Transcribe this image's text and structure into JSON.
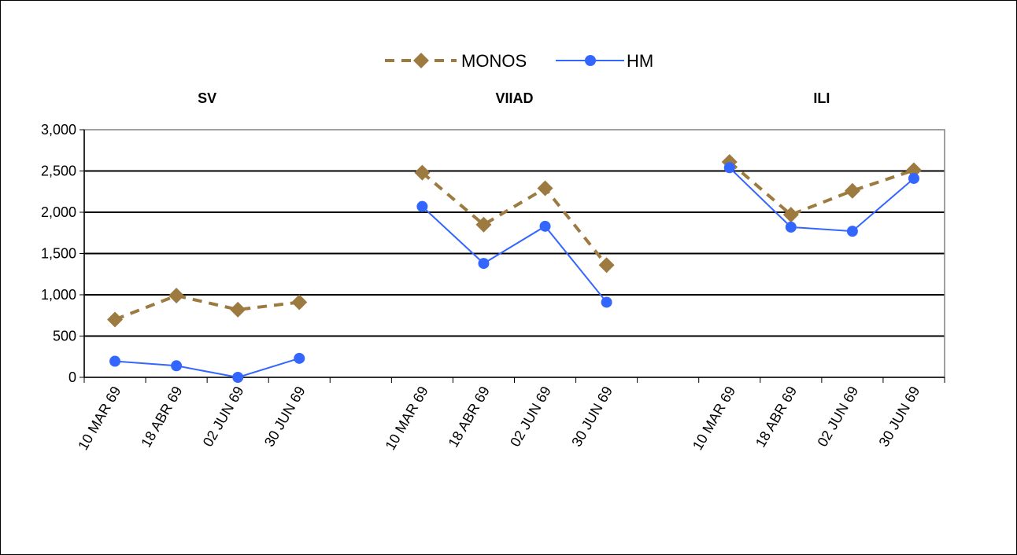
{
  "chart_data": {
    "type": "line",
    "groups": [
      "SV",
      "VIIAD",
      "ILI"
    ],
    "categories": [
      "10 MAR 69",
      "18 ABR 69",
      "02 JUN 69",
      "30 JUN 69"
    ],
    "series": [
      {
        "name": "MONOS",
        "color": "#9C7A40",
        "style": "dashed",
        "marker": "diamond",
        "values": [
          [
            700,
            990,
            820,
            910
          ],
          [
            2480,
            1850,
            2290,
            1360
          ],
          [
            2610,
            1970,
            2260,
            2510
          ]
        ]
      },
      {
        "name": "HM",
        "color": "#3366FF",
        "style": "solid",
        "marker": "circle",
        "values": [
          [
            195,
            140,
            0,
            230
          ],
          [
            2070,
            1380,
            1830,
            910
          ],
          [
            2540,
            1820,
            1770,
            2410
          ]
        ]
      }
    ],
    "yticks": [
      "0",
      "500",
      "1,000",
      "1,500",
      "2,000",
      "2,500",
      "3,000"
    ],
    "ylim": [
      0,
      3000
    ],
    "grid": true,
    "legend_position": "top"
  }
}
